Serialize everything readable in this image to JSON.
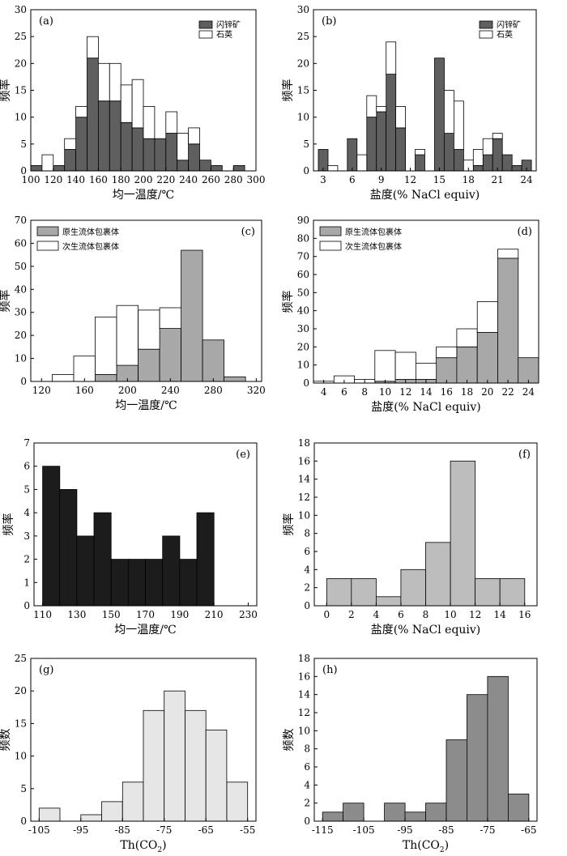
{
  "chart_data": [
    {
      "type": "bar",
      "subtype": "histogram",
      "panel_label": "(a)",
      "xlabel": "均一温度/℃",
      "ylabel": "频率",
      "xlim": [
        100,
        300
      ],
      "ylim": [
        0,
        30
      ],
      "xticks": [
        100,
        120,
        140,
        160,
        180,
        200,
        220,
        240,
        260,
        280,
        300
      ],
      "yticks": [
        0,
        5,
        10,
        15,
        20,
        25,
        30
      ],
      "bin_width": 10,
      "stacked": true,
      "legend_position": "top-right",
      "series": [
        {
          "name": "闪锌矿",
          "color": "#5f5f5f",
          "bins": [
            100,
            110,
            120,
            130,
            140,
            150,
            160,
            170,
            180,
            190,
            200,
            210,
            220,
            230,
            240,
            250,
            260,
            270,
            280
          ],
          "values": [
            1,
            0,
            1,
            4,
            10,
            21,
            13,
            13,
            9,
            8,
            6,
            6,
            7,
            2,
            5,
            2,
            1,
            0,
            1
          ]
        },
        {
          "name": "石英",
          "color": "#ffffff",
          "bins": [
            100,
            110,
            120,
            130,
            140,
            150,
            160,
            170,
            180,
            190,
            200,
            210,
            220,
            230,
            240,
            250,
            260,
            270,
            280
          ],
          "values": [
            0,
            3,
            0,
            2,
            2,
            4,
            7,
            7,
            7,
            9,
            6,
            0,
            4,
            5,
            3,
            0,
            0,
            0,
            0
          ]
        }
      ]
    },
    {
      "type": "bar",
      "subtype": "histogram",
      "panel_label": "(b)",
      "xlabel": "盐度(% NaCl equiv)",
      "ylabel": "频率",
      "xlim": [
        2,
        25
      ],
      "ylim": [
        0,
        30
      ],
      "xticks": [
        3,
        6,
        9,
        12,
        15,
        18,
        21,
        24
      ],
      "yticks": [
        0,
        5,
        10,
        15,
        20,
        25,
        30
      ],
      "bin_width": 1,
      "stacked": true,
      "legend_position": "top-right",
      "series": [
        {
          "name": "闪锌矿",
          "color": "#5f5f5f",
          "bins": [
            2.5,
            3.5,
            4.5,
            5.5,
            6.5,
            7.5,
            8.5,
            9.5,
            10.5,
            11.5,
            12.5,
            13.5,
            14.5,
            15.5,
            16.5,
            17.5,
            18.5,
            19.5,
            20.5,
            21.5,
            22.5,
            23.5
          ],
          "values": [
            4,
            0,
            0,
            6,
            0,
            10,
            11,
            18,
            8,
            0,
            3,
            0,
            21,
            7,
            4,
            0,
            1,
            3,
            6,
            3,
            1,
            2
          ]
        },
        {
          "name": "石英",
          "color": "#ffffff",
          "bins": [
            2.5,
            3.5,
            4.5,
            5.5,
            6.5,
            7.5,
            8.5,
            9.5,
            10.5,
            11.5,
            12.5,
            13.5,
            14.5,
            15.5,
            16.5,
            17.5,
            18.5,
            19.5,
            20.5,
            21.5,
            22.5,
            23.5
          ],
          "values": [
            0,
            1,
            0,
            0,
            3,
            4,
            1,
            6,
            4,
            0,
            1,
            0,
            0,
            8,
            9,
            2,
            3,
            3,
            1,
            0,
            0,
            0
          ]
        }
      ]
    },
    {
      "type": "bar",
      "subtype": "histogram",
      "panel_label": "(c)",
      "xlabel": "均一温度/℃",
      "ylabel": "频率",
      "xlim": [
        110,
        325
      ],
      "ylim": [
        0,
        70
      ],
      "xticks": [
        120,
        160,
        200,
        240,
        280,
        320
      ],
      "yticks": [
        0,
        10,
        20,
        30,
        40,
        50,
        60,
        70
      ],
      "bin_width": 20,
      "stacked": true,
      "legend_position": "top-left",
      "series": [
        {
          "name": "原生流体包裹体",
          "color": "#a8a8a8",
          "bins": [
            130,
            150,
            170,
            190,
            210,
            230,
            250,
            270,
            290
          ],
          "values": [
            0,
            0,
            3,
            7,
            14,
            23,
            57,
            18,
            2
          ]
        },
        {
          "name": "次生流体包裹体",
          "color": "#ffffff",
          "bins": [
            130,
            150,
            170,
            190,
            210,
            230,
            250,
            270,
            290
          ],
          "values": [
            3,
            11,
            25,
            26,
            17,
            9,
            0,
            0,
            0
          ]
        }
      ]
    },
    {
      "type": "bar",
      "subtype": "histogram",
      "panel_label": "(d)",
      "xlabel": "盐度(% NaCl equiv)",
      "ylabel": "频率",
      "xlim": [
        3,
        25
      ],
      "ylim": [
        0,
        90
      ],
      "xticks": [
        4,
        6,
        8,
        10,
        12,
        14,
        16,
        18,
        20,
        22,
        24
      ],
      "yticks": [
        0,
        10,
        20,
        30,
        40,
        50,
        60,
        70,
        80,
        90
      ],
      "bin_width": 2,
      "stacked": true,
      "legend_position": "top-left",
      "series": [
        {
          "name": "原生流体包裹体",
          "color": "#a8a8a8",
          "bins": [
            3,
            5,
            7,
            9,
            11,
            13,
            15,
            17,
            19,
            21,
            23
          ],
          "values": [
            0,
            0,
            0,
            1,
            2,
            2,
            14,
            20,
            28,
            69,
            14
          ]
        },
        {
          "name": "次生流体包裹体",
          "color": "#ffffff",
          "bins": [
            3,
            5,
            7,
            9,
            11,
            13,
            15,
            17,
            19,
            21,
            23
          ],
          "values": [
            1,
            4,
            2,
            17,
            15,
            9,
            6,
            10,
            17,
            5,
            0
          ]
        }
      ]
    },
    {
      "type": "bar",
      "subtype": "histogram",
      "panel_label": "(e)",
      "xlabel": "均一温度/℃",
      "ylabel": "频率",
      "xlim": [
        105,
        235
      ],
      "ylim": [
        0,
        7
      ],
      "xticks": [
        110,
        130,
        150,
        170,
        190,
        210,
        230
      ],
      "yticks": [
        0,
        1,
        2,
        3,
        4,
        5,
        6,
        7
      ],
      "bin_width": 10,
      "stacked": false,
      "series": [
        {
          "name": "",
          "color": "#1c1c1c",
          "bins": [
            110,
            120,
            130,
            140,
            150,
            160,
            170,
            180,
            190,
            200,
            210,
            220
          ],
          "values": [
            6,
            5,
            3,
            4,
            2,
            2,
            2,
            3,
            2,
            4,
            0,
            0
          ]
        }
      ]
    },
    {
      "type": "bar",
      "subtype": "histogram",
      "panel_label": "(f)",
      "xlabel": "盐度(% NaCl equiv)",
      "ylabel": "频率",
      "xlim": [
        -1,
        17
      ],
      "ylim": [
        0,
        18
      ],
      "xticks": [
        0,
        2,
        4,
        6,
        8,
        10,
        12,
        14,
        16
      ],
      "yticks": [
        0,
        2,
        4,
        6,
        8,
        10,
        12,
        14,
        16,
        18
      ],
      "bin_width": 2,
      "stacked": false,
      "series": [
        {
          "name": "",
          "color": "#bdbdbd",
          "bins": [
            0,
            2,
            4,
            6,
            8,
            10,
            12,
            14
          ],
          "values": [
            3,
            3,
            1,
            4,
            7,
            16,
            3,
            3
          ]
        }
      ]
    },
    {
      "type": "bar",
      "subtype": "histogram",
      "panel_label": "(g)",
      "xlabel": "Th(CO",
      "xlabel_subscript": "2",
      "xlabel_suffix": ")",
      "ylabel": "频数",
      "xlim": [
        -107,
        -53
      ],
      "ylim": [
        0,
        25
      ],
      "xticks": [
        -105,
        -95,
        -85,
        -75,
        -65,
        -55
      ],
      "yticks": [
        0,
        5,
        10,
        15,
        20,
        25
      ],
      "bin_width": 5,
      "stacked": false,
      "series": [
        {
          "name": "",
          "color": "#e6e6e6",
          "bins": [
            -105,
            -100,
            -95,
            -90,
            -85,
            -80,
            -75,
            -70,
            -65,
            -60
          ],
          "values": [
            2,
            0,
            1,
            3,
            6,
            17,
            20,
            17,
            14,
            6
          ]
        }
      ]
    },
    {
      "type": "bar",
      "subtype": "histogram",
      "panel_label": "(h)",
      "xlabel": "Th(CO",
      "xlabel_subscript": "2",
      "xlabel_suffix": ")",
      "ylabel": "频数",
      "xlim": [
        -117,
        -63
      ],
      "ylim": [
        0,
        18
      ],
      "xticks": [
        -115,
        -105,
        -95,
        -85,
        -75,
        -65
      ],
      "yticks": [
        0,
        2,
        4,
        6,
        8,
        10,
        12,
        14,
        16,
        18
      ],
      "bin_width": 5,
      "stacked": false,
      "series": [
        {
          "name": "",
          "color": "#8c8c8c",
          "bins": [
            -115,
            -110,
            -105,
            -100,
            -95,
            -90,
            -85,
            -80,
            -75,
            -70
          ],
          "values": [
            1,
            2,
            0,
            2,
            1,
            2,
            9,
            14,
            16,
            3
          ]
        }
      ]
    }
  ]
}
